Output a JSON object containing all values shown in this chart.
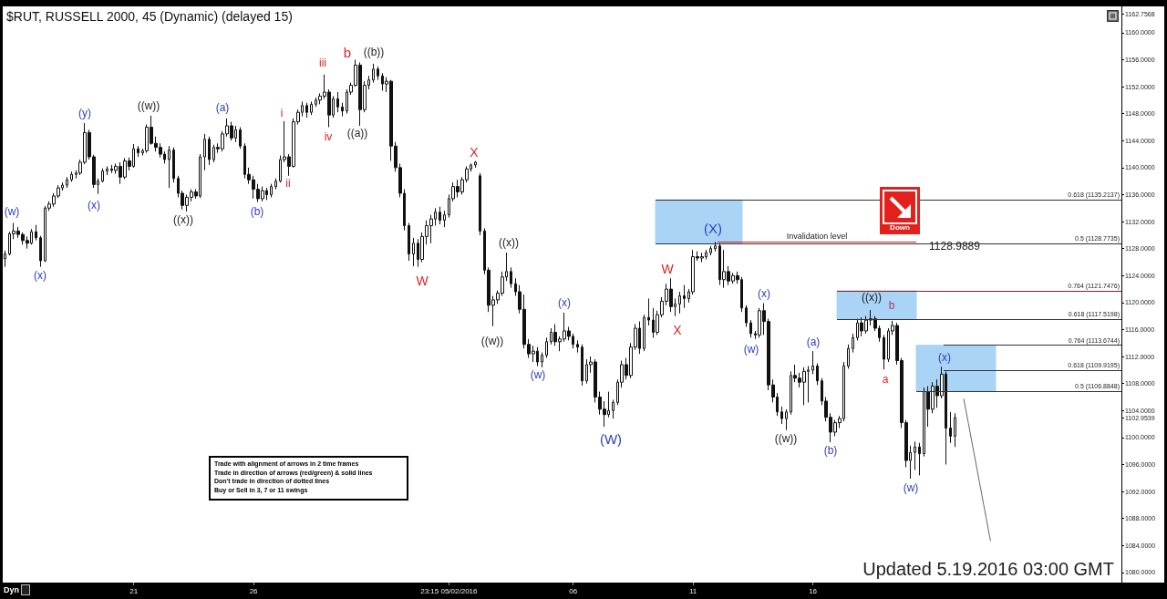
{
  "chart_data": {
    "type": "candlestick",
    "title": "$RUT, RUSSELL 2000, 45 (Dynamic) (delayed 15)",
    "categories": [
      null,
      null,
      null,
      null,
      null,
      null,
      null,
      null,
      null,
      null,
      null,
      null,
      null,
      null,
      null,
      null,
      null,
      null,
      null,
      null,
      null,
      null,
      null,
      null,
      null,
      null,
      null,
      null,
      null,
      "21",
      null,
      null,
      null,
      null,
      null,
      null,
      null,
      null,
      null,
      null,
      null,
      null,
      null,
      null,
      null,
      null,
      null,
      null,
      null,
      null,
      null,
      null,
      null,
      null,
      null,
      null,
      "26",
      null,
      null,
      null,
      null,
      null,
      null,
      null,
      null,
      null,
      null,
      null,
      null,
      null,
      null,
      null,
      null,
      null,
      null,
      null,
      null,
      null,
      null,
      null,
      null,
      null,
      null,
      null,
      null,
      null,
      null,
      null,
      null,
      null,
      null,
      null,
      null,
      null,
      null,
      null,
      null,
      null,
      null,
      null,
      "23:15 05/02/2016",
      null,
      null,
      null,
      null,
      null,
      null,
      null,
      null,
      null,
      null,
      null,
      null,
      null,
      null,
      null,
      null,
      null,
      null,
      null,
      null,
      null,
      null,
      null,
      null,
      null,
      null,
      null,
      "06",
      null,
      null,
      null,
      null,
      null,
      null,
      null,
      null,
      null,
      null,
      null,
      null,
      null,
      null,
      null,
      null,
      null,
      null,
      null,
      null,
      null,
      null,
      null,
      null,
      null,
      null,
      "11",
      null,
      null,
      null,
      null,
      null,
      null,
      null,
      null,
      null,
      null,
      null,
      null,
      null,
      null,
      null,
      null,
      null,
      null,
      null,
      null,
      null,
      null,
      null,
      null,
      null,
      null,
      "16",
      null,
      null,
      null,
      null,
      null,
      null,
      null,
      null,
      null,
      null,
      null,
      null,
      null,
      null,
      null,
      null,
      null,
      null,
      null,
      null,
      null,
      null,
      null,
      null,
      null,
      null,
      null,
      null,
      null,
      null,
      null,
      null,
      null,
      null,
      null,
      null,
      null,
      null,
      null,
      null,
      null,
      null,
      null,
      null,
      null,
      null,
      null,
      null,
      null,
      null,
      null,
      null,
      null,
      null,
      null,
      null,
      null,
      null,
      null,
      null,
      null,
      null,
      null,
      null,
      null,
      null,
      null,
      null,
      null
    ],
    "color": "#111111",
    "ohlc": [
      [
        1126.5,
        1127.7,
        1125.3,
        1127.2
      ],
      [
        1127.2,
        1130.5,
        1127,
        1130.2
      ],
      [
        1130.2,
        1131.8,
        1129.4,
        1130.6
      ],
      [
        1130.6,
        1131.2,
        1129.6,
        1130.1
      ],
      [
        1130.1,
        1130.4,
        1128.6,
        1129.2
      ],
      [
        1129.2,
        1129.8,
        1128,
        1128.8
      ],
      [
        1128.8,
        1130.9,
        1128.6,
        1130.5
      ],
      [
        1130.5,
        1131.5,
        1129.2,
        1129.6
      ],
      [
        1129.6,
        1129.9,
        1125.3,
        1126.2
      ],
      [
        1126.2,
        1134.3,
        1126,
        1134
      ],
      [
        1134,
        1135,
        1133.6,
        1134.6
      ],
      [
        1134.6,
        1136.2,
        1134.2,
        1135.8
      ],
      [
        1135.8,
        1137.4,
        1135.5,
        1137
      ],
      [
        1137,
        1137.8,
        1136.6,
        1137.4
      ],
      [
        1137.4,
        1138.6,
        1137,
        1138.2
      ],
      [
        1138.2,
        1139.4,
        1137.9,
        1139
      ],
      [
        1139,
        1139.6,
        1138.4,
        1139.2
      ],
      [
        1139.2,
        1141.2,
        1138.9,
        1140.8
      ],
      [
        1140.8,
        1146.6,
        1140.5,
        1145.2
      ],
      [
        1145.2,
        1145.6,
        1141.2,
        1141.6
      ],
      [
        1141.6,
        1141.9,
        1137,
        1137.5
      ],
      [
        1137.5,
        1138.4,
        1136.1,
        1138
      ],
      [
        1138,
        1139.9,
        1137.8,
        1139.5
      ],
      [
        1139.5,
        1140.2,
        1138.9,
        1139.8
      ],
      [
        1139.8,
        1140.4,
        1139.2,
        1139.6
      ],
      [
        1139.6,
        1140.6,
        1139.1,
        1140.2
      ],
      [
        1140.2,
        1140.8,
        1137.6,
        1138.6
      ],
      [
        1138.6,
        1141.4,
        1138.3,
        1141
      ],
      [
        1141,
        1141.5,
        1139.6,
        1140.2
      ],
      [
        1140.2,
        1143.5,
        1140,
        1142.8
      ],
      [
        1142.8,
        1143.2,
        1141.6,
        1142.2
      ],
      [
        1142.2,
        1142.8,
        1141.8,
        1142.5
      ],
      [
        1142.5,
        1146.4,
        1142.2,
        1146
      ],
      [
        1146,
        1147.7,
        1143.4,
        1143.6
      ],
      [
        1143.6,
        1144.6,
        1142.4,
        1143
      ],
      [
        1143,
        1143.6,
        1141.5,
        1142
      ],
      [
        1142,
        1142.4,
        1140.6,
        1141.2
      ],
      [
        1141.2,
        1143.2,
        1137,
        1142.6
      ],
      [
        1142.6,
        1143,
        1137.8,
        1138.4
      ],
      [
        1138.4,
        1138.8,
        1135.6,
        1136.2
      ],
      [
        1136.2,
        1136.6,
        1133.8,
        1134.4
      ],
      [
        1134.4,
        1136,
        1133.5,
        1135.6
      ],
      [
        1135.6,
        1136.8,
        1135,
        1136.4
      ],
      [
        1136.4,
        1136.8,
        1135.4,
        1135.8
      ],
      [
        1135.8,
        1142,
        1135.5,
        1141.6
      ],
      [
        1141.6,
        1145,
        1139.6,
        1144.2
      ],
      [
        1144.2,
        1144.6,
        1140.4,
        1141.2
      ],
      [
        1141.2,
        1143.4,
        1140.8,
        1143
      ],
      [
        1143,
        1143.6,
        1142.2,
        1142.8
      ],
      [
        1142.8,
        1145.4,
        1142.4,
        1145
      ],
      [
        1145,
        1147.3,
        1144.6,
        1146.2
      ],
      [
        1146.2,
        1146.8,
        1144,
        1144.4
      ],
      [
        1144.4,
        1146.2,
        1143.8,
        1145.6
      ],
      [
        1145.6,
        1146,
        1142.8,
        1143.2
      ],
      [
        1143.2,
        1143.6,
        1138.4,
        1139
      ],
      [
        1139,
        1140,
        1137.6,
        1138.2
      ],
      [
        1138.2,
        1138.8,
        1135.4,
        1136.8
      ],
      [
        1136.8,
        1137.6,
        1134.9,
        1135.4
      ],
      [
        1135.4,
        1137.2,
        1135,
        1136.6
      ],
      [
        1136.6,
        1137,
        1135.2,
        1136
      ],
      [
        1136,
        1137.6,
        1135.6,
        1137.2
      ],
      [
        1137.2,
        1138.4,
        1136.8,
        1138
      ],
      [
        1138,
        1141.8,
        1137.8,
        1141.2
      ],
      [
        1141.2,
        1146.9,
        1140.8,
        1141.6
      ],
      [
        1141.6,
        1142,
        1138.8,
        1140.2
      ],
      [
        1140.2,
        1147.3,
        1140,
        1146.8
      ],
      [
        1146.8,
        1148.6,
        1146.4,
        1148.2
      ],
      [
        1148.2,
        1149.8,
        1147.6,
        1149.2
      ],
      [
        1149.2,
        1149.6,
        1147.4,
        1148.2
      ],
      [
        1148.2,
        1149.8,
        1147.8,
        1149.4
      ],
      [
        1149.4,
        1150.4,
        1149,
        1150
      ],
      [
        1150,
        1151,
        1149.4,
        1150.6
      ],
      [
        1150.6,
        1153.8,
        1150.2,
        1151.2
      ],
      [
        1151.2,
        1151.6,
        1146,
        1147.8
      ],
      [
        1147.8,
        1150.6,
        1147.4,
        1150.2
      ],
      [
        1150.2,
        1151.2,
        1148.2,
        1149
      ],
      [
        1149,
        1149.6,
        1147.6,
        1148.4
      ],
      [
        1148.4,
        1151.6,
        1148,
        1151.2
      ],
      [
        1151.2,
        1152.6,
        1150.8,
        1152.2
      ],
      [
        1152.2,
        1156,
        1152,
        1155.2
      ],
      [
        1155.2,
        1155.6,
        1146.2,
        1148.6
      ],
      [
        1148.6,
        1152.8,
        1148.2,
        1152.2
      ],
      [
        1152.2,
        1153.6,
        1151.6,
        1153
      ],
      [
        1153,
        1155.4,
        1152.6,
        1154.6
      ],
      [
        1154.6,
        1155,
        1153,
        1153.6
      ],
      [
        1153.6,
        1154,
        1151.4,
        1152.4
      ],
      [
        1152.4,
        1153.4,
        1151.2,
        1152.8
      ],
      [
        1152.8,
        1153,
        1141,
        1143.2
      ],
      [
        1143.2,
        1143.8,
        1139.4,
        1140
      ],
      [
        1140,
        1140.6,
        1135.6,
        1136.2
      ],
      [
        1136.2,
        1136.8,
        1130.7,
        1131.4
      ],
      [
        1131.4,
        1131.8,
        1126.2,
        1127.2
      ],
      [
        1127.2,
        1129.6,
        1125.4,
        1128.8
      ],
      [
        1128.8,
        1129.4,
        1125.3,
        1126.4
      ],
      [
        1126.4,
        1130.4,
        1126,
        1129.8
      ],
      [
        1129.8,
        1132.2,
        1128.6,
        1131.4
      ],
      [
        1131.4,
        1133,
        1128.8,
        1132.4
      ],
      [
        1132.4,
        1134,
        1131.4,
        1133.4
      ],
      [
        1133.4,
        1134.2,
        1131.6,
        1132.2
      ],
      [
        1132.2,
        1133.6,
        1131.2,
        1133
      ],
      [
        1133,
        1136,
        1132.6,
        1135.4
      ],
      [
        1135.4,
        1137.8,
        1135,
        1137.2
      ],
      [
        1137.2,
        1138.2,
        1135.6,
        1136.4
      ],
      [
        1136.4,
        1138.6,
        1136,
        1138.2
      ],
      [
        1138.2,
        1140.2,
        1137.8,
        1139.8
      ],
      [
        1139.8,
        1140.6,
        1139.4,
        1140.4
      ],
      [
        1140.4,
        1141,
        1140,
        1140.8
      ],
      [
        1138.8,
        1139.2,
        1130,
        1130.6
      ],
      [
        1130.6,
        1131,
        1124.2,
        1124.8
      ],
      [
        1124.8,
        1125.2,
        1118.6,
        1119.6
      ],
      [
        1119.6,
        1121,
        1116.5,
        1120.4
      ],
      [
        1120.4,
        1121.8,
        1119.8,
        1121.4
      ],
      [
        1121.4,
        1124.6,
        1121,
        1123.8
      ],
      [
        1123.8,
        1127.4,
        1123.2,
        1124.6
      ],
      [
        1124.6,
        1125.2,
        1122.2,
        1122.8
      ],
      [
        1122.8,
        1123.6,
        1121,
        1121.6
      ],
      [
        1121.6,
        1122.6,
        1118.4,
        1119
      ],
      [
        1119,
        1121.2,
        1113.2,
        1113.8
      ],
      [
        1113.8,
        1114.6,
        1111.8,
        1112.4
      ],
      [
        1112.4,
        1113.6,
        1111.2,
        1112.8
      ],
      [
        1112.8,
        1113.4,
        1110.6,
        1111.2
      ],
      [
        1111.2,
        1112.6,
        1110.4,
        1112.2
      ],
      [
        1112.2,
        1114.8,
        1111.8,
        1114.2
      ],
      [
        1114.2,
        1116.2,
        1113.8,
        1115.6
      ],
      [
        1115.6,
        1116.8,
        1113.6,
        1114.2
      ],
      [
        1114.2,
        1115,
        1112.8,
        1114.6
      ],
      [
        1114.6,
        1118.5,
        1114.2,
        1115.8
      ],
      [
        1115.8,
        1116.4,
        1114.4,
        1115
      ],
      [
        1115,
        1115.4,
        1113.2,
        1113.8
      ],
      [
        1113.8,
        1114.4,
        1112.6,
        1113.4
      ],
      [
        1113.4,
        1113.8,
        1107.7,
        1108.4
      ],
      [
        1108.4,
        1111.6,
        1108,
        1110.8
      ],
      [
        1110.8,
        1112,
        1109.6,
        1111.2
      ],
      [
        1111.2,
        1111.6,
        1105.2,
        1106
      ],
      [
        1106,
        1106.8,
        1103.4,
        1104.2
      ],
      [
        1104.2,
        1105.4,
        1101.6,
        1103.4
      ],
      [
        1103.4,
        1106.8,
        1103,
        1104
      ],
      [
        1104,
        1105.6,
        1102.8,
        1105.2
      ],
      [
        1105.2,
        1108.6,
        1104.8,
        1108.2
      ],
      [
        1108.2,
        1111.4,
        1107.4,
        1110.8
      ],
      [
        1110.8,
        1111.8,
        1108.6,
        1109.2
      ],
      [
        1109.2,
        1114,
        1108.8,
        1113.4
      ],
      [
        1113.4,
        1116.8,
        1113,
        1116.2
      ],
      [
        1116.2,
        1117.2,
        1112.4,
        1113.2
      ],
      [
        1113.2,
        1118.2,
        1112.8,
        1117.8
      ],
      [
        1117.8,
        1120.6,
        1116.6,
        1117.4
      ],
      [
        1117.4,
        1119.2,
        1114.8,
        1115.6
      ],
      [
        1115.6,
        1118.8,
        1115.2,
        1118.2
      ],
      [
        1118.2,
        1120.8,
        1117.8,
        1120.2
      ],
      [
        1120.2,
        1122.8,
        1119.6,
        1122
      ],
      [
        1122,
        1123.6,
        1118.6,
        1119.4
      ],
      [
        1119.4,
        1120.6,
        1118,
        1119.8
      ],
      [
        1119.8,
        1121.6,
        1118.4,
        1121
      ],
      [
        1121,
        1122.6,
        1119.2,
        1120.6
      ],
      [
        1120.6,
        1122,
        1120,
        1121.6
      ],
      [
        1121.6,
        1127.8,
        1121.2,
        1126.8
      ],
      [
        1126.8,
        1127.6,
        1126.2,
        1126.6
      ],
      [
        1126.6,
        1127.4,
        1126,
        1126.8
      ],
      [
        1126.8,
        1127.8,
        1126.4,
        1127.4
      ],
      [
        1127.4,
        1128.4,
        1127,
        1128
      ],
      [
        1128,
        1129,
        1127.6,
        1128.4
      ],
      [
        1128.4,
        1128.8,
        1122.6,
        1123.4
      ],
      [
        1123.4,
        1127.8,
        1122.2,
        1124.6
      ],
      [
        1124.6,
        1125.4,
        1122.6,
        1123.2
      ],
      [
        1123.2,
        1124.4,
        1122.8,
        1124
      ],
      [
        1124,
        1124.6,
        1122.8,
        1123.4
      ],
      [
        1123.4,
        1123.8,
        1118.6,
        1119.2
      ],
      [
        1119.2,
        1119.6,
        1116.4,
        1117
      ],
      [
        1117,
        1117.4,
        1114.8,
        1115.4
      ],
      [
        1115.4,
        1115.8,
        1114.6,
        1115.2
      ],
      [
        1115.2,
        1119.2,
        1114.8,
        1118.8
      ],
      [
        1118.8,
        1119.9,
        1115.2,
        1117.2
      ],
      [
        1117.2,
        1117.6,
        1107,
        1107.8
      ],
      [
        1107.8,
        1108.6,
        1105.2,
        1106
      ],
      [
        1106,
        1106.6,
        1103.2,
        1103.8
      ],
      [
        1103.8,
        1104.6,
        1102,
        1102.8
      ],
      [
        1102.8,
        1104.2,
        1101.1,
        1103.8
      ],
      [
        1103.8,
        1109.8,
        1103.4,
        1109.2
      ],
      [
        1109.2,
        1110.8,
        1108.2,
        1108.8
      ],
      [
        1108.8,
        1109.6,
        1107.4,
        1108.2
      ],
      [
        1108.2,
        1110.4,
        1104.8,
        1109.8
      ],
      [
        1109.8,
        1110.6,
        1105.2,
        1110
      ],
      [
        1110,
        1112.8,
        1109.4,
        1110.6
      ],
      [
        1110.6,
        1111,
        1107.8,
        1108.4
      ],
      [
        1108.4,
        1108.8,
        1104.8,
        1105.4
      ],
      [
        1105.4,
        1106,
        1102.4,
        1103
      ],
      [
        1103,
        1103.6,
        1099.3,
        1100.8
      ],
      [
        1100.8,
        1102.6,
        1100.2,
        1102.2
      ],
      [
        1102.2,
        1103.2,
        1101.4,
        1102.8
      ],
      [
        1102.8,
        1111.2,
        1102.4,
        1110.6
      ],
      [
        1110.6,
        1113.8,
        1110.2,
        1113.2
      ],
      [
        1113.2,
        1115.4,
        1112.6,
        1114.8
      ],
      [
        1114.8,
        1117.6,
        1114.4,
        1117
      ],
      [
        1117,
        1117.8,
        1115,
        1115.8
      ],
      [
        1115.8,
        1118,
        1115.4,
        1117.4
      ],
      [
        1117.4,
        1118.9,
        1116.6,
        1117.6
      ],
      [
        1117.6,
        1118,
        1115.8,
        1116.2
      ],
      [
        1116.2,
        1116.6,
        1114.2,
        1114.8
      ],
      [
        1114.8,
        1115.2,
        1110.1,
        1111.6
      ],
      [
        1111.6,
        1116.2,
        1111.2,
        1115.8
      ],
      [
        1115.8,
        1117.3,
        1115.2,
        1116.6
      ],
      [
        1116.6,
        1117,
        1110.8,
        1111.4
      ],
      [
        1111.4,
        1111.8,
        1101.4,
        1102.2
      ],
      [
        1102.2,
        1102.6,
        1095.6,
        1096.6
      ],
      [
        1096.6,
        1098.8,
        1093.9,
        1097.8
      ],
      [
        1097.8,
        1099.4,
        1095.2,
        1098.6
      ],
      [
        1098.6,
        1099.2,
        1094.4,
        1097.6
      ],
      [
        1097.6,
        1107.4,
        1097.2,
        1106.8
      ],
      [
        1106.8,
        1107.6,
        1101.6,
        1104.2
      ],
      [
        1104.2,
        1108.2,
        1103.6,
        1107.6
      ],
      [
        1107.6,
        1108.6,
        1104.4,
        1106.2
      ],
      [
        1106.2,
        1110.5,
        1105.8,
        1109.4
      ],
      [
        1109.4,
        1109.8,
        1096,
        1101.4
      ],
      [
        1101.4,
        1103.8,
        1099.2,
        1100.2
      ],
      [
        1100.2,
        1103.6,
        1098.6,
        1102.9539
      ],
      null,
      null,
      null,
      null,
      null,
      null,
      null,
      null,
      null,
      null,
      null,
      null,
      null,
      null,
      null,
      null,
      null,
      null,
      null,
      null,
      null,
      null,
      null,
      null,
      null,
      null,
      null,
      null,
      null,
      null,
      null,
      null,
      null,
      null,
      null,
      null,
      null
    ],
    "series": [
      {
        "type": "line",
        "color": "#666666",
        "values": [
          null,
          null,
          null,
          null,
          null,
          null,
          null,
          null,
          null,
          null,
          null,
          null,
          null,
          null,
          null,
          null,
          null,
          null,
          null,
          null,
          null,
          null,
          null,
          null,
          null,
          null,
          null,
          null,
          null,
          null,
          null,
          null,
          null,
          null,
          null,
          null,
          null,
          null,
          null,
          null,
          null,
          null,
          null,
          null,
          null,
          null,
          null,
          null,
          null,
          null,
          null,
          null,
          null,
          null,
          null,
          null,
          null,
          null,
          null,
          null,
          null,
          null,
          null,
          null,
          null,
          null,
          null,
          null,
          null,
          null,
          null,
          null,
          null,
          null,
          null,
          null,
          null,
          null,
          null,
          null,
          null,
          null,
          null,
          null,
          null,
          null,
          null,
          null,
          null,
          null,
          null,
          null,
          null,
          null,
          null,
          null,
          null,
          null,
          null,
          null,
          null,
          null,
          null,
          null,
          null,
          null,
          null,
          null,
          null,
          null,
          null,
          null,
          null,
          null,
          null,
          null,
          null,
          null,
          null,
          null,
          null,
          null,
          null,
          null,
          null,
          null,
          null,
          null,
          null,
          null,
          null,
          null,
          null,
          null,
          null,
          null,
          null,
          null,
          null,
          null,
          null,
          null,
          null,
          null,
          null,
          null,
          null,
          null,
          null,
          null,
          null,
          null,
          null,
          null,
          null,
          null,
          null,
          null,
          null,
          null,
          null,
          null,
          null,
          null,
          null,
          null,
          null,
          null,
          null,
          null,
          null,
          null,
          null,
          null,
          null,
          null,
          null,
          null,
          null,
          null,
          null,
          null,
          null,
          null,
          null,
          null,
          null,
          null,
          null,
          null,
          null,
          null,
          null,
          null,
          null,
          null,
          null,
          null,
          null,
          null,
          null,
          null,
          null,
          null,
          null,
          null,
          null,
          null,
          null,
          null,
          null,
          null,
          null,
          null,
          null,
          null,
          1105.7,
          1102.2,
          1098.7,
          1095.2,
          1091.7,
          1088.2,
          1084.7,
          null,
          null,
          null,
          null,
          null,
          null,
          null,
          null,
          null,
          null,
          null,
          null,
          null,
          null,
          null,
          null,
          null,
          null,
          null,
          null,
          null,
          null,
          null,
          null,
          null,
          null,
          null,
          null,
          null
        ]
      }
    ],
    "ylim": [
      1078.5,
      1163.9
    ],
    "yticks": [
      {
        "value": 1080,
        "label": "1080.0000"
      },
      {
        "value": 1084,
        "label": "1084.0000"
      },
      {
        "value": 1088,
        "label": "1088.0000"
      },
      {
        "value": 1092,
        "label": "1092.0000"
      },
      {
        "value": 1096,
        "label": "1096.0000"
      },
      {
        "value": 1100,
        "label": "1100.0000"
      },
      1102.9539,
      {
        "value": 1104,
        "label": "1104.0000"
      },
      {
        "value": 1108,
        "label": "1108.0000"
      },
      {
        "value": 1112,
        "label": "1112.0000"
      },
      {
        "value": 1116,
        "label": "1116.0000"
      },
      {
        "value": 1120,
        "label": "1120.0000"
      },
      {
        "value": 1124,
        "label": "1124.0000"
      },
      {
        "value": 1128,
        "label": "1128.0000"
      },
      {
        "value": 1132,
        "label": "1132.0000"
      },
      {
        "value": 1136,
        "label": "1136.0000"
      },
      {
        "value": 1140,
        "label": "1140.0000"
      },
      {
        "value": 1144,
        "label": "1144.0000"
      },
      {
        "value": 1148,
        "label": "1148.0000"
      },
      {
        "value": 1152,
        "label": "1152.0000"
      },
      {
        "value": 1156,
        "label": "1156.0000"
      },
      {
        "value": 1160,
        "label": "1160.0000"
      },
      1162.7568
    ],
    "ref_lines": [
      {
        "axis": "y",
        "value": 1135.2137,
        "label": "0.618 (1135.2137)",
        "color": "#333333"
      },
      {
        "axis": "y",
        "value": 1128.7735,
        "label": "0.5 (1128.7735)",
        "color": "#333333"
      },
      {
        "axis": "y",
        "value": 1128.9889,
        "label": "Invalidation level",
        "color": "#d42020"
      },
      {
        "axis": "y",
        "value": 1121.7476,
        "label": "0.764 (1121.7476)",
        "color": "#8b2020"
      },
      {
        "axis": "y",
        "value": 1117.5198,
        "label": "0.618 (1117.5198)",
        "color": "#333333"
      },
      {
        "axis": "y",
        "value": 1113.6744,
        "label": "0.764 (1113.6744)",
        "color": "#333333"
      },
      {
        "axis": "y",
        "value": 1109.9195,
        "label": "0.618 (1109.9195)",
        "color": "#333333"
      },
      {
        "axis": "y",
        "value": 1106.8848,
        "label": "0.5 (1106.8848)",
        "color": "#333333"
      }
    ],
    "bands": [
      {
        "axis": "y",
        "from": 1128.7735,
        "to": 1135.2137,
        "color": "#a9d4f6"
      },
      {
        "axis": "y",
        "from": 1117.5198,
        "to": 1121.7476,
        "color": "#a9d4f6"
      },
      {
        "axis": "y",
        "from": 1106.8848,
        "to": 1113.6744,
        "color": "#a9d4f6"
      }
    ],
    "annotations": [
      "Trade with alignment of arrows in 2 time frames\nTrade in direction of arrows (red/green) & solid lines\nDon't trade in direction of dotted lines\nBuy or Sell in 3, 7 or 11 swings",
      "Down",
      "Updated 5.19.2016 03:00 GMT",
      "Dyn",
      "1128.9889",
      "(w)",
      "(x)",
      "(y)",
      "(x)",
      "((w))",
      "((x))",
      "(a)",
      "(b)",
      "i",
      "ii",
      "iii",
      "iv",
      "b",
      "((a))",
      "((b))",
      "W",
      "X",
      "((w))",
      "((x))",
      "(w)",
      "(x)",
      "(W)",
      "W",
      "X",
      "(X)",
      "(w)",
      "(x)",
      "((w))",
      "(a)",
      "(b)",
      "((x))",
      "a",
      "b",
      "(w)",
      "(x)"
    ],
    "grid": false
  }
}
